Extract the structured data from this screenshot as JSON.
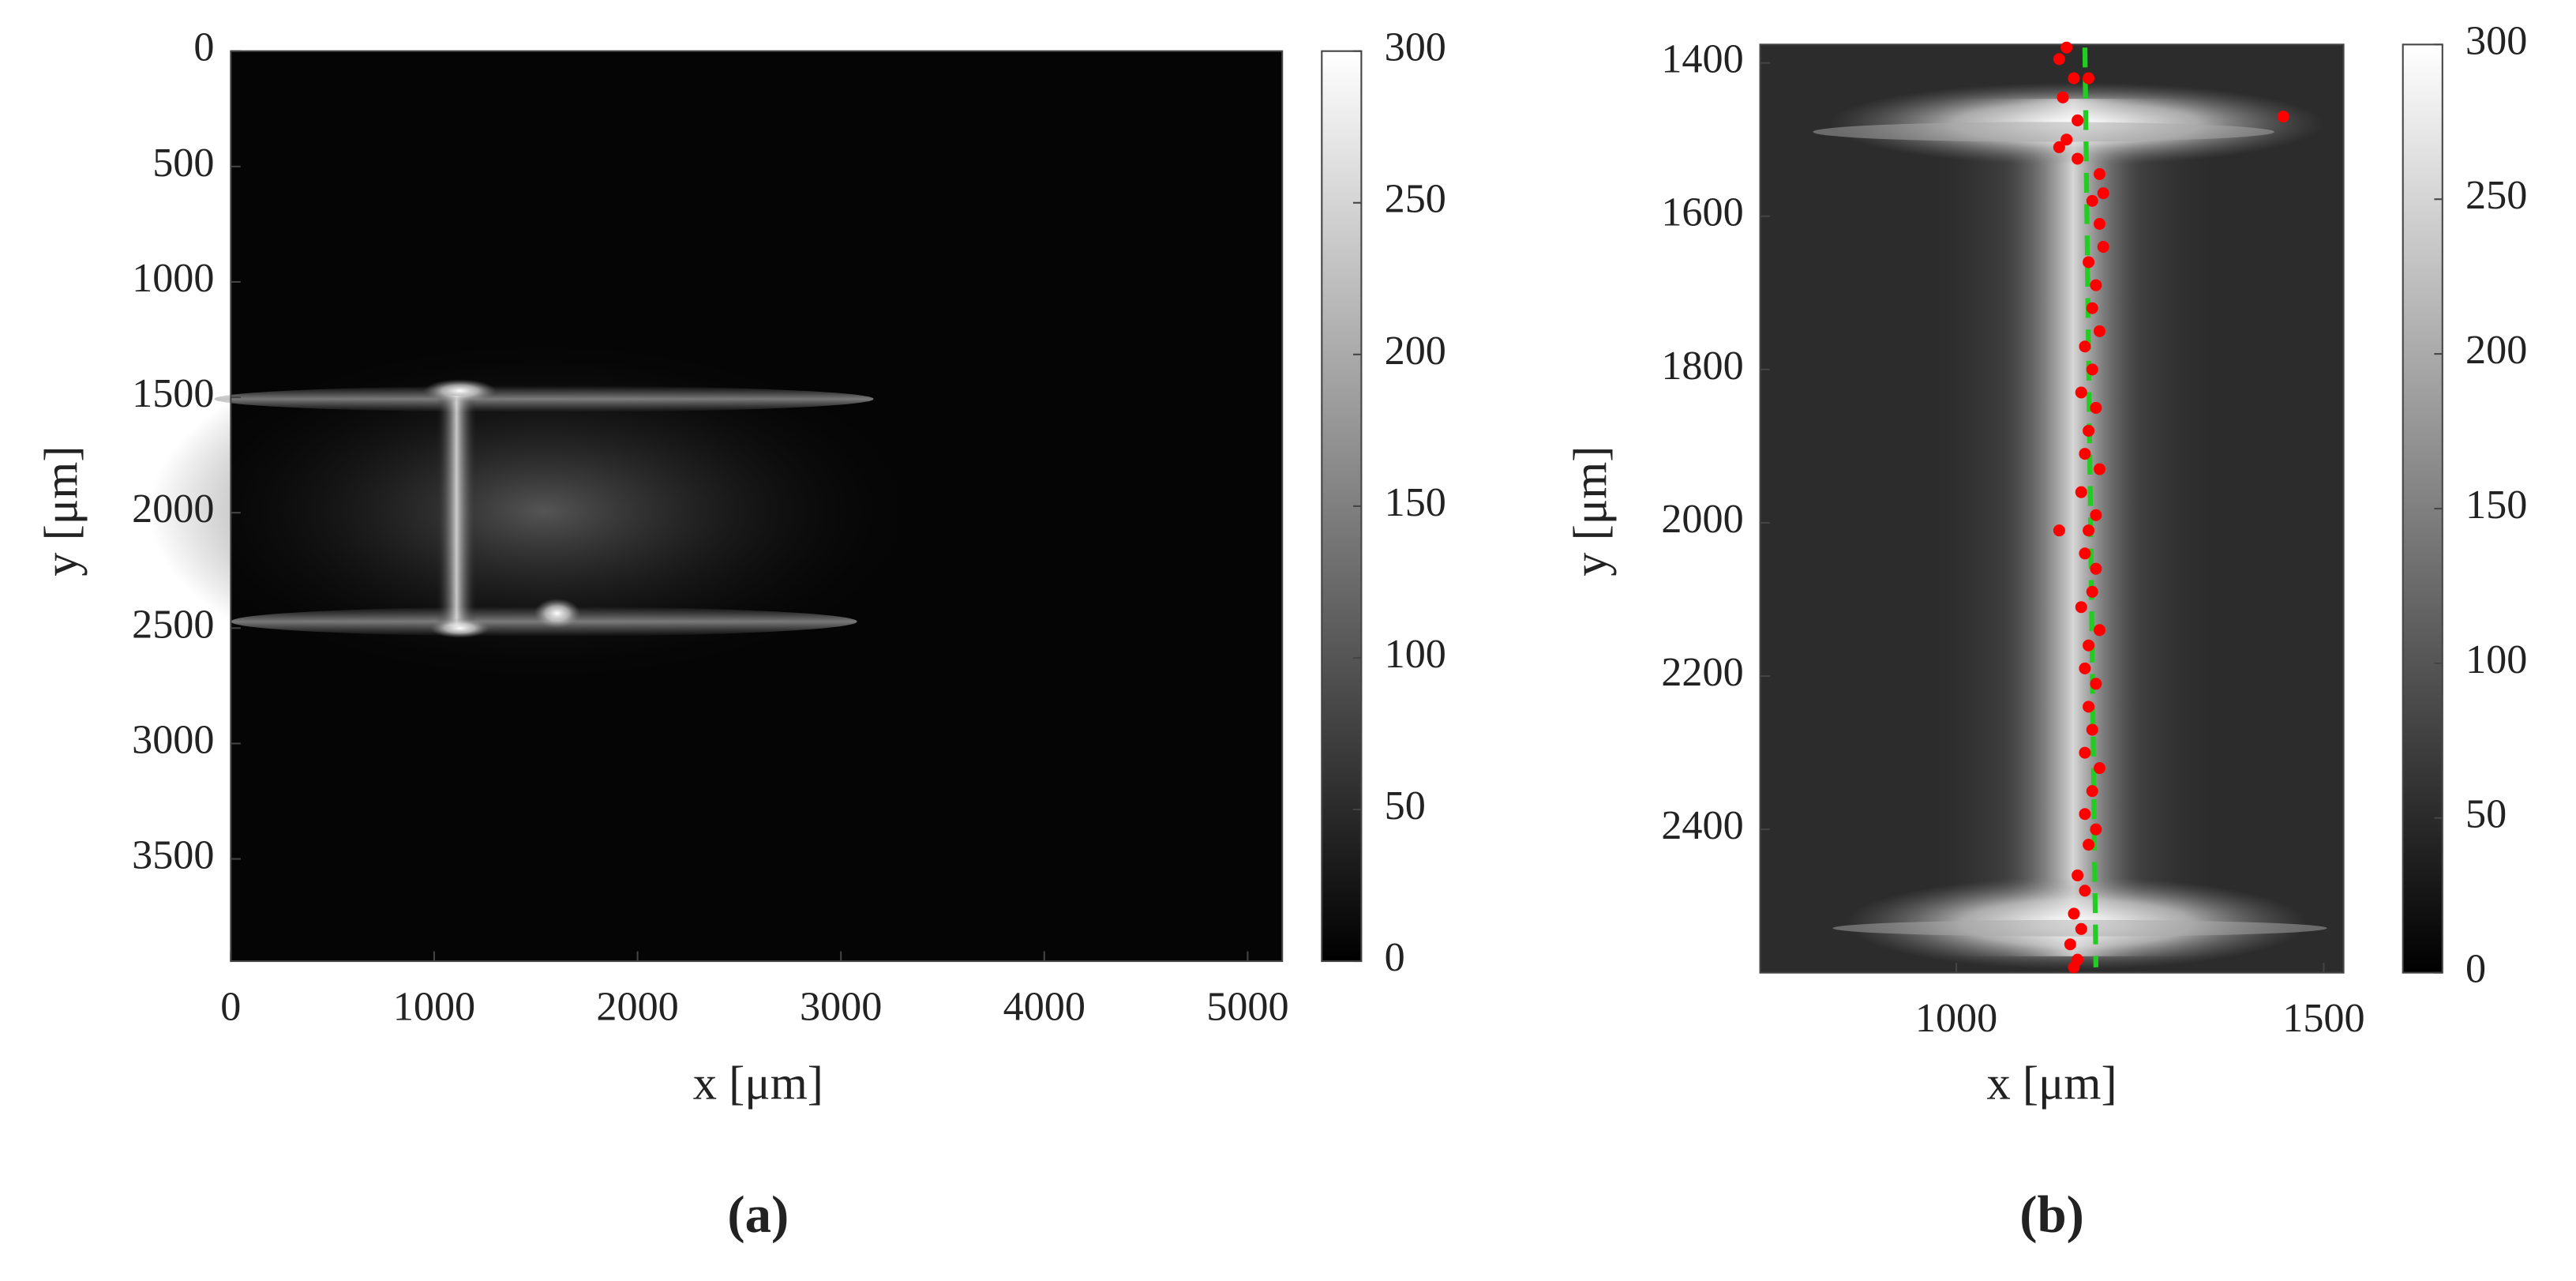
{
  "chart_data": [
    {
      "type": "image",
      "caption": "(a)",
      "xlabel": "x [μm]",
      "ylabel": "y [μm]",
      "xlim": [
        0,
        5170
      ],
      "ylim": [
        0,
        3943
      ],
      "y_reversed": true,
      "xticks": [
        0,
        1000,
        2000,
        3000,
        4000,
        5000
      ],
      "yticks": [
        0,
        500,
        1000,
        1500,
        2000,
        2500,
        3000,
        3500
      ],
      "colormap": "gray",
      "clim": [
        0,
        300
      ],
      "cticks": [
        0,
        50,
        100,
        150,
        200,
        250,
        300
      ]
    },
    {
      "type": "image",
      "caption": "(b)",
      "xlabel": "x [μm]",
      "ylabel": "y [μm]",
      "xlim": [
        733,
        1527
      ],
      "ylim": [
        1376,
        2587
      ],
      "y_reversed": true,
      "xticks": [
        1000,
        1500
      ],
      "yticks": [
        1400,
        1600,
        1800,
        2000,
        2200,
        2400
      ],
      "colormap": "gray",
      "clim": [
        0,
        300
      ],
      "cticks": [
        0,
        50,
        100,
        150,
        200,
        250,
        300
      ],
      "points": {
        "color": "#ff0000",
        "x": [
          1150,
          1140,
          1160,
          1145,
          1180,
          1165,
          1150,
          1140,
          1165,
          1195,
          1200,
          1185,
          1195,
          1200,
          1180,
          1190,
          1185,
          1195,
          1175,
          1185,
          1170,
          1190,
          1180,
          1175,
          1195,
          1170,
          1190,
          1180,
          1175,
          1190,
          1140,
          1185,
          1170,
          1195,
          1180,
          1175,
          1190,
          1180,
          1185,
          1175,
          1195,
          1185,
          1175,
          1190,
          1180,
          1165,
          1175,
          1160,
          1170,
          1155,
          1165,
          1160,
          1445
        ],
        "y": [
          1380,
          1395,
          1420,
          1445,
          1420,
          1475,
          1500,
          1510,
          1525,
          1545,
          1570,
          1580,
          1610,
          1640,
          1660,
          1690,
          1720,
          1750,
          1770,
          1800,
          1830,
          1850,
          1880,
          1910,
          1930,
          1960,
          1990,
          2010,
          2040,
          2060,
          2010,
          2090,
          2110,
          2140,
          2160,
          2190,
          2210,
          2240,
          2270,
          2300,
          2320,
          2350,
          2380,
          2400,
          2420,
          2460,
          2480,
          2510,
          2530,
          2550,
          2570,
          2580,
          1470
        ]
      },
      "fit_line": {
        "color": "#22cc22",
        "dashed": true,
        "x": [
          1175,
          1190
        ],
        "y": [
          1380,
          2580
        ]
      }
    }
  ]
}
